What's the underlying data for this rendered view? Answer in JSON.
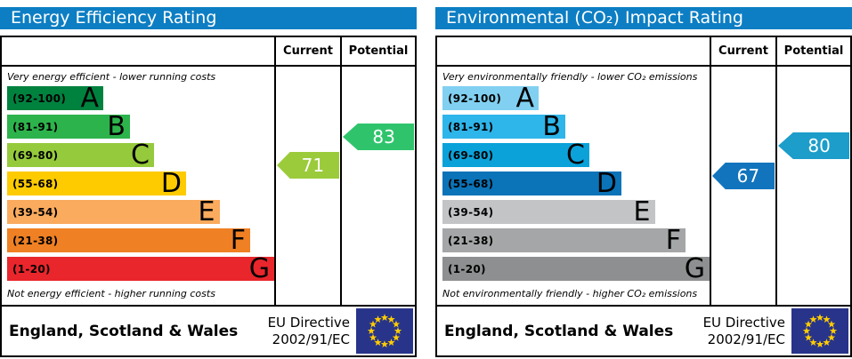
{
  "colors": {
    "title_bg": "#0d7ec3",
    "title_fg": "#ffffff",
    "border": "#000000",
    "eu_flag_bg": "#28348a",
    "eu_flag_star": "#ffcc00"
  },
  "bands": [
    {
      "range": "(92-100)",
      "letter": "A",
      "lo": 92,
      "hi": 100,
      "width_pct": 36
    },
    {
      "range": "(81-91)",
      "letter": "B",
      "lo": 81,
      "hi": 91,
      "width_pct": 46
    },
    {
      "range": "(69-80)",
      "letter": "C",
      "lo": 69,
      "hi": 80,
      "width_pct": 55
    },
    {
      "range": "(55-68)",
      "letter": "D",
      "lo": 55,
      "hi": 68,
      "width_pct": 67
    },
    {
      "range": "(39-54)",
      "letter": "E",
      "lo": 39,
      "hi": 54,
      "width_pct": 79.5
    },
    {
      "range": "(21-38)",
      "letter": "F",
      "lo": 21,
      "hi": 38,
      "width_pct": 91
    },
    {
      "range": "(1-20)",
      "letter": "G",
      "lo": 1,
      "hi": 20,
      "width_pct": 100
    }
  ],
  "panels": [
    {
      "name": "energy-efficiency",
      "title": "Energy Efficiency Rating",
      "columns": {
        "current": "Current",
        "potential": "Potential"
      },
      "caption_top": "Very energy efficient - lower running costs",
      "caption_bottom": "Not energy efficient - higher running costs",
      "band_colors": [
        "#00823f",
        "#2db34c",
        "#95ca3c",
        "#fecb00",
        "#faab5e",
        "#ef8023",
        "#e9262c"
      ],
      "current": {
        "value": 71,
        "color": "#9bcb3b",
        "band": "C"
      },
      "potential": {
        "value": 83,
        "color": "#2fc46c",
        "band": "B"
      },
      "footer": {
        "region": "England, Scotland & Wales",
        "directive_line1": "EU Directive",
        "directive_line2": "2002/91/EC"
      }
    },
    {
      "name": "environmental-co2",
      "title": "Environmental (CO₂) Impact Rating",
      "columns": {
        "current": "Current",
        "potential": "Potential"
      },
      "caption_top": "Very environmentally friendly - lower CO₂ emissions",
      "caption_bottom": "Not environmentally friendly - higher CO₂ emissions",
      "band_colors": [
        "#81d0f1",
        "#2eb5ea",
        "#0ba2da",
        "#0b73b8",
        "#c2c4c6",
        "#a4a6a7",
        "#8d8f90"
      ],
      "current": {
        "value": 67,
        "color": "#1274bc",
        "band": "D"
      },
      "potential": {
        "value": 80,
        "color": "#1c9dca",
        "band": "C"
      },
      "footer": {
        "region": "England, Scotland & Wales",
        "directive_line1": "EU Directive",
        "directive_line2": "2002/91/EC"
      }
    }
  ],
  "chart_data": [
    {
      "type": "bar",
      "orientation": "horizontal",
      "title": "Energy Efficiency Rating",
      "categories": [
        "A (92-100)",
        "B (81-91)",
        "C (69-80)",
        "D (55-68)",
        "E (39-54)",
        "F (21-38)",
        "G (1-20)"
      ],
      "bar_length_pct": [
        36,
        46,
        55,
        67,
        79.5,
        91,
        100
      ],
      "series": [
        {
          "name": "Current",
          "value": 71,
          "band": "C"
        },
        {
          "name": "Potential",
          "value": 83,
          "band": "B"
        }
      ],
      "annotation_top": "Very energy efficient - lower running costs",
      "annotation_bottom": "Not energy efficient - higher running costs",
      "region": "England, Scotland & Wales",
      "directive": "EU Directive 2002/91/EC"
    },
    {
      "type": "bar",
      "orientation": "horizontal",
      "title": "Environmental (CO₂) Impact Rating",
      "categories": [
        "A (92-100)",
        "B (81-91)",
        "C (69-80)",
        "D (55-68)",
        "E (39-54)",
        "F (21-38)",
        "G (1-20)"
      ],
      "bar_length_pct": [
        36,
        46,
        55,
        67,
        79.5,
        91,
        100
      ],
      "series": [
        {
          "name": "Current",
          "value": 67,
          "band": "D"
        },
        {
          "name": "Potential",
          "value": 80,
          "band": "C"
        }
      ],
      "annotation_top": "Very environmentally friendly - lower CO₂ emissions",
      "annotation_bottom": "Not environmentally friendly - higher CO₂ emissions",
      "region": "England, Scotland & Wales",
      "directive": "EU Directive 2002/91/EC"
    }
  ]
}
